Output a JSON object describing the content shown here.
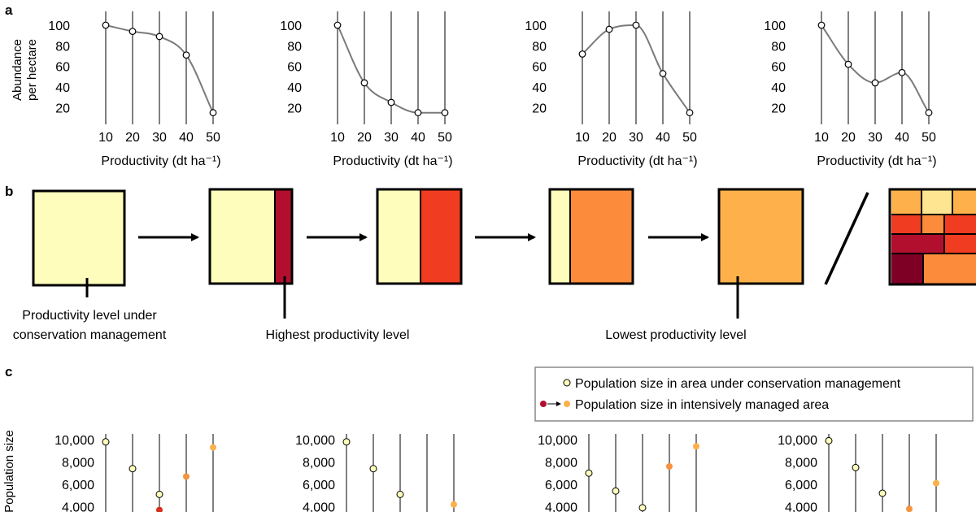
{
  "panel_labels": {
    "a": "a",
    "b": "b",
    "c": "c"
  },
  "chart_data": [
    {
      "type": "line",
      "panel": "a1",
      "x": [
        10,
        20,
        30,
        40,
        50
      ],
      "values": [
        100,
        94,
        89,
        71,
        15
      ],
      "xlabel": "Productivity (dt ha⁻¹)",
      "ylabel_line1": "Abundance",
      "ylabel_line2": "per hectare",
      "yticks": [
        "100",
        "80",
        "60",
        "40",
        "20"
      ],
      "xticks": [
        "10",
        "20",
        "30",
        "40",
        "50"
      ],
      "ylim": [
        10,
        112
      ]
    },
    {
      "type": "line",
      "panel": "a2",
      "x": [
        10,
        20,
        30,
        40,
        50
      ],
      "values": [
        100,
        44,
        25,
        15,
        15
      ],
      "xlabel": "Productivity (dt ha⁻¹)",
      "yticks": [
        "100",
        "80",
        "60",
        "40",
        "20"
      ],
      "xticks": [
        "10",
        "20",
        "30",
        "40",
        "50"
      ],
      "ylim": [
        10,
        112
      ]
    },
    {
      "type": "line",
      "panel": "a3",
      "x": [
        10,
        20,
        30,
        40,
        50
      ],
      "values": [
        72,
        96,
        100,
        53,
        15
      ],
      "xlabel": "Productivity (dt ha⁻¹)",
      "yticks": [
        "100",
        "80",
        "60",
        "40",
        "20"
      ],
      "xticks": [
        "10",
        "20",
        "30",
        "40",
        "50"
      ],
      "ylim": [
        10,
        112
      ]
    },
    {
      "type": "line",
      "panel": "a4",
      "x": [
        10,
        20,
        30,
        40,
        50
      ],
      "values": [
        100,
        62,
        44,
        54,
        15
      ],
      "xlabel": "Productivity (dt ha⁻¹)",
      "yticks": [
        "100",
        "80",
        "60",
        "40",
        "20"
      ],
      "xticks": [
        "10",
        "20",
        "30",
        "40",
        "50"
      ],
      "ylim": [
        10,
        112
      ]
    },
    {
      "type": "scatter",
      "panel": "c1",
      "ylabel": "Population size",
      "yticks": [
        "10,000",
        "8,000",
        "6,000",
        "4,000"
      ],
      "series": [
        {
          "name": "Population size in area under conservation management",
          "points": [
            [
              10,
              9800
            ],
            [
              20,
              7400
            ],
            [
              30,
              5100
            ]
          ]
        },
        {
          "name": "Population size in intensively managed area",
          "points": [
            [
              30,
              3700
            ],
            [
              40,
              6700
            ],
            [
              50,
              9300
            ]
          ]
        }
      ]
    },
    {
      "type": "scatter",
      "panel": "c2",
      "yticks": [
        "10,000",
        "8,000",
        "6,000",
        "4,000"
      ],
      "series": [
        {
          "name": "Population size in area under conservation management",
          "points": [
            [
              10,
              9800
            ],
            [
              20,
              7400
            ],
            [
              30,
              5100
            ]
          ]
        },
        {
          "name": "Population size in intensively managed area",
          "points": [
            [
              50,
              4200
            ]
          ]
        }
      ]
    },
    {
      "type": "scatter",
      "panel": "c3",
      "yticks": [
        "10,000",
        "8,000",
        "6,000",
        "4,000"
      ],
      "series": [
        {
          "name": "Population size in area under conservation management",
          "points": [
            [
              10,
              7000
            ],
            [
              20,
              5400
            ],
            [
              30,
              3900
            ]
          ]
        },
        {
          "name": "Population size in intensively managed area",
          "points": [
            [
              40,
              7600
            ],
            [
              50,
              9400
            ]
          ]
        }
      ]
    },
    {
      "type": "scatter",
      "panel": "c4",
      "yticks": [
        "10,000",
        "8,000",
        "6,000",
        "4,000"
      ],
      "series": [
        {
          "name": "Population size in area under conservation management",
          "points": [
            [
              10,
              9900
            ],
            [
              20,
              7500
            ],
            [
              30,
              5200
            ]
          ]
        },
        {
          "name": "Population size in intensively managed area",
          "points": [
            [
              40,
              3800
            ],
            [
              50,
              6100
            ]
          ]
        }
      ]
    }
  ],
  "panel_b": {
    "label_conservation_line1": "Productivity level under",
    "label_conservation_line2": "conservation management",
    "label_highest": "Highest productivity level",
    "label_lowest": "Lowest productivity level",
    "colors": {
      "conservation": "#fefdbb",
      "highest": "#b20f2e",
      "step2": "#f03c21",
      "step3": "#fc8c3c",
      "lowest": "#feb14b",
      "light_yellow": "#fee591",
      "dark_red": "#7e0025"
    }
  },
  "legend": {
    "conservation": "Population size in area under conservation management",
    "intensive": "Population size in intensively managed area",
    "colors": {
      "conservation": "#fefdbb",
      "intensive_from": "#b20f2e",
      "intensive_to": "#fbb04a"
    }
  }
}
